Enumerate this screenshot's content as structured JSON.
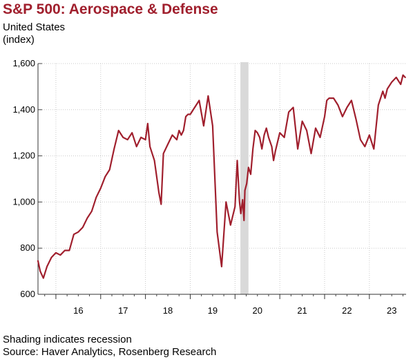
{
  "chart_data": {
    "type": "line",
    "title": "S&P 500: Aerospace & Defense",
    "subtitle_lines": [
      "United States",
      "(index)"
    ],
    "ylim": [
      600,
      1600
    ],
    "y_ticks": [
      600,
      800,
      1000,
      1200,
      1400,
      1600
    ],
    "y_tick_labels": [
      "600",
      "800",
      "1,000",
      "1,200",
      "1,400",
      "1,600"
    ],
    "xlim": [
      2015.6,
      2023.82
    ],
    "x_tick_labels": [
      "16",
      "17",
      "18",
      "19",
      "20",
      "21",
      "22",
      "23"
    ],
    "grid": true,
    "recession": [
      2020.12,
      2020.3
    ],
    "line_color": "#a01f2d",
    "series": [
      {
        "x": [
          2015.6,
          2015.65,
          2015.72,
          2015.8,
          2015.9,
          2016.0,
          2016.1,
          2016.2,
          2016.3,
          2016.4,
          2016.5,
          2016.6,
          2016.7,
          2016.8,
          2016.9,
          2017.0,
          2017.1,
          2017.2,
          2017.3,
          2017.4,
          2017.5,
          2017.6,
          2017.7,
          2017.8,
          2017.9,
          2018.0,
          2018.05,
          2018.1,
          2018.2,
          2018.3,
          2018.35,
          2018.4,
          2018.5,
          2018.6,
          2018.7,
          2018.75,
          2018.8,
          2018.85,
          2018.9,
          2018.95,
          2019.0,
          2019.1,
          2019.2,
          2019.3,
          2019.4,
          2019.5,
          2019.6,
          2019.7,
          2019.8,
          2019.9,
          2020.0,
          2020.05,
          2020.1,
          2020.13,
          2020.17,
          2020.2,
          2020.22,
          2020.26,
          2020.3,
          2020.35,
          2020.4,
          2020.45,
          2020.5,
          2020.55,
          2020.6,
          2020.65,
          2020.7,
          2020.75,
          2020.82,
          2020.86,
          2020.9,
          2021.0,
          2021.1,
          2021.2,
          2021.3,
          2021.4,
          2021.5,
          2021.6,
          2021.7,
          2021.8,
          2021.9,
          2022.0,
          2022.05,
          2022.1,
          2022.2,
          2022.3,
          2022.4,
          2022.5,
          2022.6,
          2022.7,
          2022.8,
          2022.9,
          2023.0,
          2023.1,
          2023.2,
          2023.3,
          2023.35,
          2023.4,
          2023.5,
          2023.6,
          2023.7,
          2023.75,
          2023.8
        ],
        "values": [
          745,
          700,
          670,
          720,
          760,
          780,
          770,
          790,
          790,
          860,
          870,
          890,
          930,
          960,
          1020,
          1060,
          1110,
          1140,
          1230,
          1310,
          1280,
          1270,
          1300,
          1240,
          1280,
          1270,
          1340,
          1240,
          1180,
          1040,
          990,
          1210,
          1250,
          1290,
          1270,
          1310,
          1290,
          1310,
          1370,
          1380,
          1380,
          1410,
          1440,
          1330,
          1460,
          1330,
          870,
          720,
          1000,
          900,
          980,
          1180,
          1000,
          950,
          1010,
          920,
          1050,
          1080,
          1150,
          1120,
          1230,
          1310,
          1300,
          1280,
          1230,
          1290,
          1320,
          1280,
          1240,
          1180,
          1220,
          1300,
          1280,
          1390,
          1410,
          1230,
          1350,
          1310,
          1210,
          1320,
          1280,
          1370,
          1440,
          1450,
          1450,
          1420,
          1370,
          1410,
          1440,
          1360,
          1270,
          1240,
          1290,
          1230,
          1420,
          1480,
          1450,
          1490,
          1520,
          1540,
          1510,
          1550,
          1540
        ]
      }
    ]
  },
  "footer": {
    "note": "Shading indicates recession",
    "source": "Source: Haver Analytics, Rosenberg Research"
  }
}
